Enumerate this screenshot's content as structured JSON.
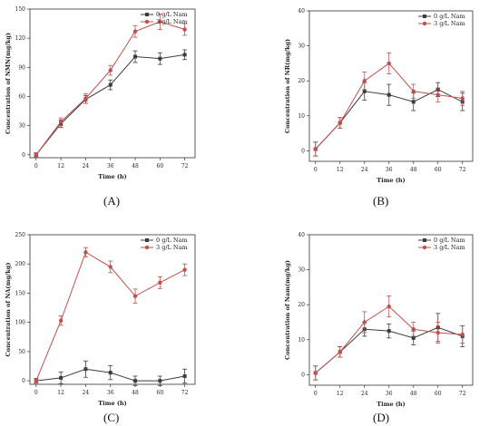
{
  "chart_data": [
    {
      "type": "line",
      "panel": "A",
      "caption": "(A)",
      "xlabel": "Time (h)",
      "ylabel": "Concentration of NMN(mg/kg)",
      "x": [
        0,
        12,
        24,
        36,
        48,
        60,
        72
      ],
      "xticks": [
        "0",
        "12",
        "24",
        "36",
        "48",
        "60",
        "72"
      ],
      "ylim": [
        -3,
        150
      ],
      "yticks": [
        0,
        30,
        60,
        90,
        120,
        150
      ],
      "legend_position": "top-right",
      "series": [
        {
          "name": "0 g/L Nam",
          "color": "#3c3c3c",
          "marker": "square",
          "values": [
            0,
            32,
            57,
            72,
            101,
            99,
            103
          ],
          "errors": [
            2,
            4,
            4,
            5,
            6,
            6,
            5
          ]
        },
        {
          "name": "3 g/L Nam",
          "color": "#c0504d",
          "marker": "circle",
          "values": [
            0,
            34,
            58,
            87,
            127,
            137,
            129
          ],
          "errors": [
            2,
            4,
            5,
            5,
            6,
            8,
            6
          ]
        }
      ]
    },
    {
      "type": "line",
      "panel": "B",
      "caption": "(B)",
      "xlabel": "Time (h)",
      "ylabel": "Concentration of NR(mg/kg)",
      "x": [
        0,
        12,
        24,
        36,
        48,
        60,
        72
      ],
      "xticks": [
        "0",
        "12",
        "24",
        "36",
        "48",
        "60",
        "72"
      ],
      "ylim": [
        -3,
        40
      ],
      "yticks": [
        0,
        10,
        20,
        30,
        40
      ],
      "legend_position": "top-right",
      "series": [
        {
          "name": "0 g/L Nam",
          "color": "#3c3c3c",
          "marker": "square",
          "values": [
            0.5,
            8,
            17,
            16,
            14,
            17.5,
            14
          ],
          "errors": [
            2,
            1.5,
            2.5,
            3,
            2.5,
            2,
            2.5
          ]
        },
        {
          "name": "3 g/L Nam",
          "color": "#c0504d",
          "marker": "circle",
          "values": [
            0.5,
            8,
            20,
            25,
            17,
            16,
            15
          ],
          "errors": [
            2,
            1.5,
            2.5,
            3,
            2,
            2,
            2
          ]
        }
      ]
    },
    {
      "type": "line",
      "panel": "C",
      "caption": "(C)",
      "xlabel": "Time (h)",
      "ylabel": "Concentration of NA(mg/kg)",
      "x": [
        0,
        12,
        24,
        36,
        48,
        60,
        72
      ],
      "xticks": [
        "0",
        "12",
        "24",
        "36",
        "48",
        "60",
        "72"
      ],
      "ylim": [
        -6,
        250
      ],
      "yticks": [
        0,
        50,
        100,
        150,
        200,
        250
      ],
      "legend_position": "top-right",
      "series": [
        {
          "name": "0 g/L Nam",
          "color": "#3c3c3c",
          "marker": "square",
          "values": [
            0,
            5,
            20,
            14,
            0,
            0,
            8
          ],
          "errors": [
            4,
            10,
            14,
            12,
            8,
            8,
            12
          ]
        },
        {
          "name": "3 g/L Nam",
          "color": "#c0504d",
          "marker": "circle",
          "values": [
            0,
            103,
            220,
            195,
            145,
            168,
            190
          ],
          "errors": [
            4,
            8,
            8,
            10,
            12,
            10,
            10
          ]
        }
      ]
    },
    {
      "type": "line",
      "panel": "D",
      "caption": "(D)",
      "xlabel": "Time (h)",
      "ylabel": "Concentration of Nam(mg/kg)",
      "x": [
        0,
        12,
        24,
        36,
        48,
        60,
        72
      ],
      "xticks": [
        "0",
        "12",
        "24",
        "36",
        "48",
        "60",
        "72"
      ],
      "ylim": [
        -3,
        40
      ],
      "yticks": [
        0,
        10,
        20,
        30,
        40
      ],
      "legend_position": "top-right",
      "series": [
        {
          "name": "0 g/L Nam",
          "color": "#3c3c3c",
          "marker": "square",
          "values": [
            0.5,
            6.5,
            13,
            12.5,
            10.5,
            13.5,
            11
          ],
          "errors": [
            2,
            1.5,
            2,
            2,
            2,
            4,
            3
          ]
        },
        {
          "name": "3 g/L Nam",
          "color": "#c0504d",
          "marker": "circle",
          "values": [
            0.5,
            6.5,
            15,
            19.5,
            13,
            12,
            11.5
          ],
          "errors": [
            2,
            1.5,
            3,
            3,
            2,
            3,
            2.5
          ]
        }
      ]
    }
  ]
}
